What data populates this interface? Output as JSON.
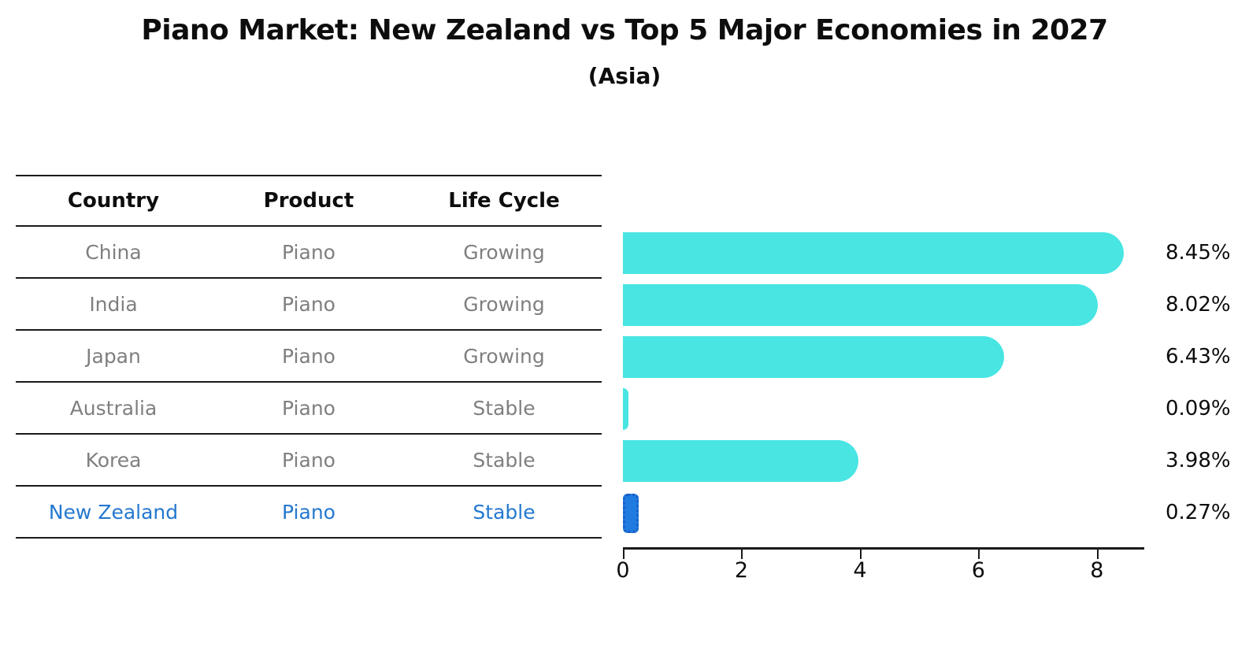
{
  "title": "Piano Market: New Zealand vs Top 5 Major Economies in 2027",
  "subtitle": "(Asia)",
  "table": {
    "headers": [
      "Country",
      "Product",
      "Life Cycle"
    ],
    "rows": [
      {
        "country": "China",
        "product": "Piano",
        "life_cycle": "Growing",
        "highlight": false
      },
      {
        "country": "India",
        "product": "Piano",
        "life_cycle": "Growing",
        "highlight": false
      },
      {
        "country": "Japan",
        "product": "Piano",
        "life_cycle": "Growing",
        "highlight": false
      },
      {
        "country": "Australia",
        "product": "Piano",
        "life_cycle": "Stable",
        "highlight": false
      },
      {
        "country": "Korea",
        "product": "Piano",
        "life_cycle": "Stable",
        "highlight": false
      },
      {
        "country": "New Zealand",
        "product": "Piano",
        "life_cycle": "Stable",
        "highlight": true
      }
    ]
  },
  "chart_data": {
    "type": "bar",
    "orientation": "horizontal",
    "title": "Piano Market: New Zealand vs Top 5 Major Economies in 2027",
    "subtitle": "(Asia)",
    "categories": [
      "China",
      "India",
      "Japan",
      "Australia",
      "Korea",
      "New Zealand"
    ],
    "values": [
      8.45,
      8.02,
      6.43,
      0.09,
      3.98,
      0.27
    ],
    "value_labels": [
      "8.45%",
      "8.02%",
      "6.43%",
      "0.09%",
      "3.98%",
      "0.27%"
    ],
    "xticks": [
      0,
      2,
      4,
      6,
      8
    ],
    "xlim": [
      0,
      8.8
    ],
    "xlabel": "",
    "ylabel": "",
    "grid": false,
    "legend_position": "none",
    "highlight_category": "New Zealand"
  },
  "colors": {
    "bar": "#48E5E3",
    "highlight_bar": "#1F7BE0",
    "highlight_bar_border": "#1A5FC8",
    "highlight_text": "#2478D0",
    "row_text": "#7F7F7F",
    "text_dark": "#0D0D0D",
    "line": "#1A1A1A"
  }
}
